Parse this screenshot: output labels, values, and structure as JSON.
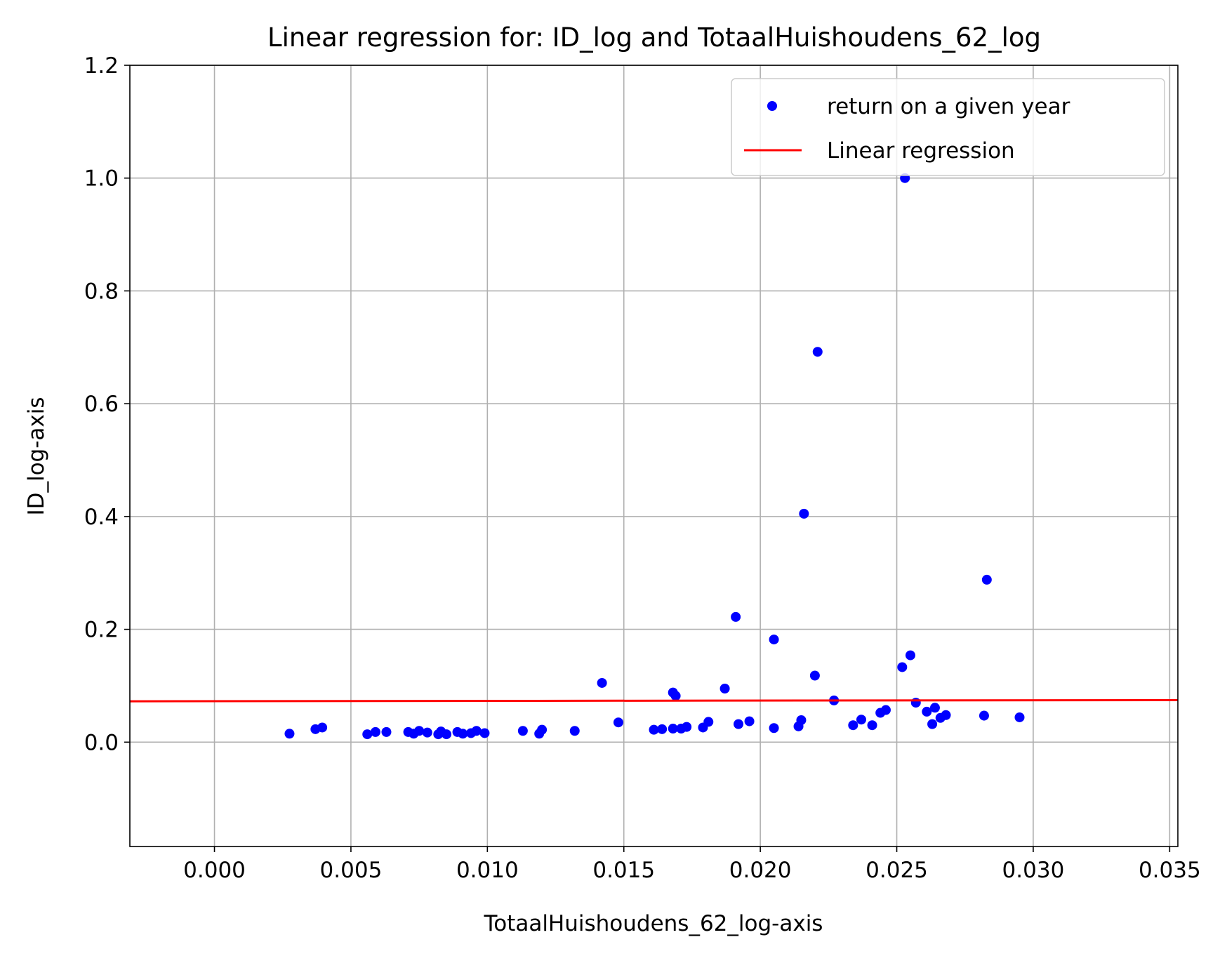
{
  "chart_data": {
    "type": "scatter",
    "title": "Linear regression for: ID_log and TotaalHuishoudens_62_log",
    "xlabel": "TotaalHuishoudens_62_log-axis",
    "ylabel": "ID_log-axis",
    "xlim": [
      -0.0031,
      0.0353
    ],
    "ylim": [
      -0.185,
      1.2
    ],
    "xticks": [
      0.0,
      0.005,
      0.01,
      0.015,
      0.02,
      0.025,
      0.03,
      0.035
    ],
    "xtick_labels": [
      "0.000",
      "0.005",
      "0.010",
      "0.015",
      "0.020",
      "0.025",
      "0.030",
      "0.035"
    ],
    "yticks": [
      0.0,
      0.2,
      0.4,
      0.6,
      0.8,
      1.0,
      1.2
    ],
    "ytick_labels": [
      "0.0",
      "0.2",
      "0.4",
      "0.6",
      "0.8",
      "1.0",
      "1.2"
    ],
    "grid": true,
    "legend_position": "top-right",
    "series": [
      {
        "name": "return on a given year",
        "kind": "scatter",
        "color": "#0000ff",
        "points": [
          [
            0.00275,
            0.015
          ],
          [
            0.0037,
            0.023
          ],
          [
            0.00395,
            0.026
          ],
          [
            0.0056,
            0.014
          ],
          [
            0.0059,
            0.018
          ],
          [
            0.0063,
            0.018
          ],
          [
            0.0071,
            0.018
          ],
          [
            0.0073,
            0.015
          ],
          [
            0.0075,
            0.02
          ],
          [
            0.0078,
            0.017
          ],
          [
            0.0082,
            0.014
          ],
          [
            0.0083,
            0.019
          ],
          [
            0.0085,
            0.014
          ],
          [
            0.0089,
            0.018
          ],
          [
            0.0091,
            0.015
          ],
          [
            0.0094,
            0.016
          ],
          [
            0.0096,
            0.02
          ],
          [
            0.0099,
            0.016
          ],
          [
            0.0113,
            0.02
          ],
          [
            0.0119,
            0.015
          ],
          [
            0.012,
            0.022
          ],
          [
            0.0132,
            0.02
          ],
          [
            0.0142,
            0.105
          ],
          [
            0.0148,
            0.035
          ],
          [
            0.0161,
            0.022
          ],
          [
            0.0164,
            0.023
          ],
          [
            0.0168,
            0.088
          ],
          [
            0.0169,
            0.082
          ],
          [
            0.0168,
            0.024
          ],
          [
            0.0171,
            0.024
          ],
          [
            0.0173,
            0.027
          ],
          [
            0.0179,
            0.026
          ],
          [
            0.0181,
            0.036
          ],
          [
            0.0187,
            0.095
          ],
          [
            0.0191,
            0.222
          ],
          [
            0.0192,
            0.032
          ],
          [
            0.0196,
            0.037
          ],
          [
            0.0205,
            0.182
          ],
          [
            0.0205,
            0.025
          ],
          [
            0.0214,
            0.028
          ],
          [
            0.0215,
            0.039
          ],
          [
            0.0216,
            0.405
          ],
          [
            0.0221,
            0.692
          ],
          [
            0.022,
            0.118
          ],
          [
            0.0227,
            0.074
          ],
          [
            0.0234,
            0.03
          ],
          [
            0.0237,
            0.04
          ],
          [
            0.0241,
            0.03
          ],
          [
            0.0244,
            0.052
          ],
          [
            0.0246,
            0.057
          ],
          [
            0.0252,
            0.133
          ],
          [
            0.0253,
            1.0
          ],
          [
            0.0255,
            0.154
          ],
          [
            0.0257,
            0.07
          ],
          [
            0.0261,
            0.054
          ],
          [
            0.0263,
            0.032
          ],
          [
            0.0264,
            0.061
          ],
          [
            0.0266,
            0.043
          ],
          [
            0.0268,
            0.048
          ],
          [
            0.0282,
            0.047
          ],
          [
            0.0283,
            0.288
          ],
          [
            0.0295,
            0.044
          ]
        ]
      },
      {
        "name": "Linear regression",
        "kind": "line",
        "color": "#ff0000",
        "x": [
          -0.0031,
          0.0353
        ],
        "y": [
          0.0725,
          0.0745
        ]
      }
    ]
  }
}
